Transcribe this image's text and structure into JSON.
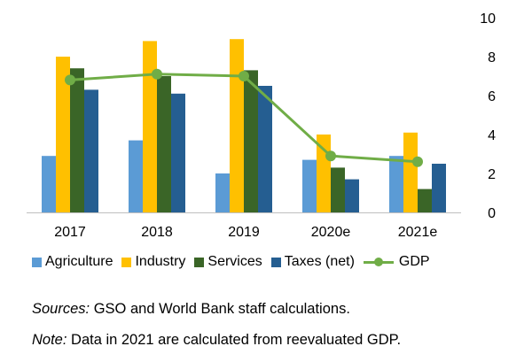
{
  "chart_data": {
    "type": "bar",
    "categories": [
      "2017",
      "2018",
      "2019",
      "2020e",
      "2021e"
    ],
    "series": [
      {
        "name": "Agriculture",
        "color": "#5b9bd5",
        "values": [
          2.9,
          3.7,
          2.0,
          2.7,
          2.9
        ]
      },
      {
        "name": "Industry",
        "color": "#ffc000",
        "values": [
          8.0,
          8.8,
          8.9,
          4.0,
          4.1
        ]
      },
      {
        "name": "Services",
        "color": "#3a6527",
        "values": [
          7.4,
          7.0,
          7.3,
          2.3,
          1.2
        ]
      },
      {
        "name": "Taxes (net)",
        "color": "#255e91",
        "values": [
          6.3,
          6.1,
          6.5,
          1.7,
          2.5
        ]
      }
    ],
    "line_series": {
      "name": "GDP",
      "color": "#70ad47",
      "values": [
        6.8,
        7.1,
        7.0,
        2.9,
        2.6
      ]
    },
    "yticks": [
      "0",
      "2",
      "4",
      "6",
      "8",
      "10"
    ],
    "ylim": [
      0,
      10
    ],
    "y_axis_side": "right",
    "title": "",
    "xlabel": "",
    "ylabel": "",
    "legend_position": "bottom"
  },
  "notes": {
    "sources_label": "Sources:",
    "sources_text": " GSO and World Bank staff calculations.",
    "note_label": "Note:",
    "note_text": " Data in 2021 are calculated from reevaluated GDP."
  }
}
